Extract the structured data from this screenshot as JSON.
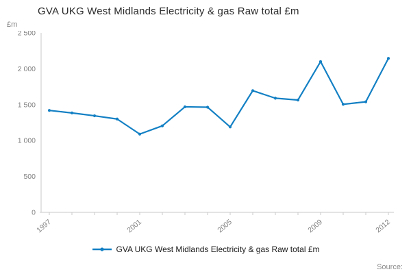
{
  "title": "GVA UKG West Midlands Electricity & gas Raw total £m",
  "source_label": "Source:",
  "legend": {
    "label": "GVA UKG West Midlands Electricity & gas Raw total £m",
    "marker": "line-with-dot"
  },
  "chart_data": {
    "type": "line",
    "title": "GVA UKG West Midlands Electricity & gas Raw total £m",
    "xlabel": "",
    "ylabel": "£m",
    "x": [
      1997,
      1998,
      1999,
      2000,
      2001,
      2002,
      2003,
      2004,
      2005,
      2006,
      2007,
      2008,
      2009,
      2010,
      2011,
      2012
    ],
    "series": [
      {
        "name": "GVA UKG West Midlands Electricity & gas Raw total £m",
        "values": [
          1420,
          1385,
          1345,
          1300,
          1090,
          1205,
          1470,
          1465,
          1190,
          1695,
          1590,
          1565,
          2100,
          1505,
          1540,
          2145
        ]
      }
    ],
    "ylim": [
      0,
      2500
    ],
    "yticks": [
      0,
      500,
      1000,
      1500,
      2000,
      2500
    ],
    "ytick_labels": [
      "0",
      "500",
      "1 000",
      "1 500",
      "2 000",
      "2 500"
    ],
    "xtick_years": [
      1997,
      2001,
      2005,
      2009,
      2012
    ],
    "grid": false,
    "legend_position": "bottom",
    "line_color": "#1380c4",
    "axis_color": "#c8c8c8",
    "tick_text_color": "#7f7f7f"
  }
}
